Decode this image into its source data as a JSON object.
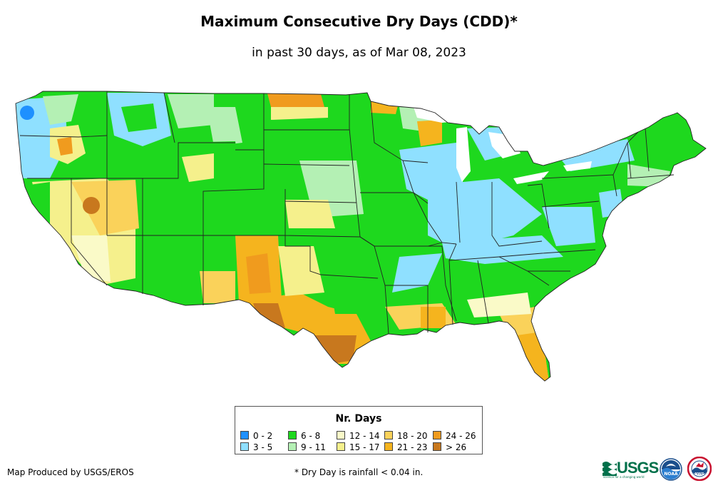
{
  "title": "Maximum Consecutive Dry Days (CDD)*",
  "subtitle": "in past 30 days, as of Mar 08, 2023",
  "legend": {
    "title": "Nr. Days",
    "items": [
      {
        "label": "0 - 2",
        "color": "#1e90ff"
      },
      {
        "label": "3 - 5",
        "color": "#8fe0ff"
      },
      {
        "label": "6 - 8",
        "color": "#1ed81e"
      },
      {
        "label": "9 - 11",
        "color": "#b4f0b4"
      },
      {
        "label": "12 - 14",
        "color": "#fafac8"
      },
      {
        "label": "15 - 17",
        "color": "#f5f08c"
      },
      {
        "label": "18 - 20",
        "color": "#fad25a"
      },
      {
        "label": "21 - 23",
        "color": "#f5b41e"
      },
      {
        "label": "24 - 26",
        "color": "#f09b1e"
      },
      {
        "label": "> 26",
        "color": "#c8781e"
      }
    ]
  },
  "credit": "Map Produced by USGS/EROS",
  "footnote": "* Dry Day is rainfall < 0.04 in.",
  "logos": {
    "usgs": "USGS",
    "usgs_tagline": "science for a changing world",
    "noaa": "NOAA",
    "nws": "NWS"
  }
}
